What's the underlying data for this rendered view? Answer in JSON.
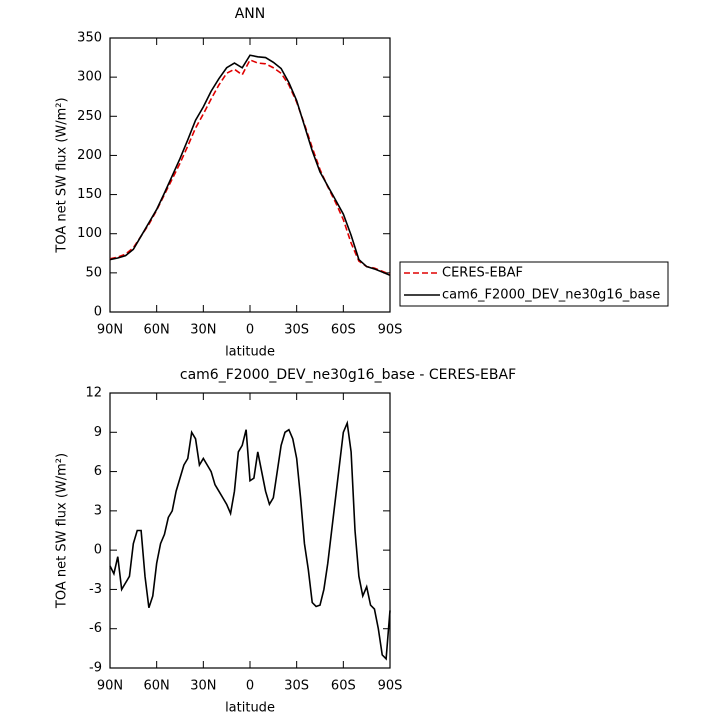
{
  "chart_data": [
    {
      "type": "line",
      "title": "ANN",
      "xlabel": "latitude",
      "ylabel": "TOA net SW flux (W/m²)",
      "x": [
        90,
        85,
        80,
        75,
        70,
        65,
        60,
        55,
        50,
        45,
        40,
        35,
        30,
        25,
        20,
        15,
        10,
        5,
        0,
        -5,
        -10,
        -15,
        -20,
        -25,
        -30,
        -35,
        -40,
        -45,
        -50,
        -55,
        -60,
        -65,
        -70,
        -75,
        -80,
        -85,
        -90
      ],
      "series": [
        {
          "name": "CERES-EBAF",
          "color": "#e00000",
          "line_style": "dashed",
          "values": [
            68,
            70,
            74,
            82,
            97,
            112,
            130,
            150,
            170,
            190,
            212,
            235,
            253,
            272,
            290,
            305,
            310,
            303,
            322,
            318,
            317,
            312,
            305,
            290,
            268,
            240,
            210,
            182,
            160,
            140,
            118,
            88,
            65,
            58,
            56,
            52,
            48
          ]
        },
        {
          "name": "cam6_F2000_DEV_ne30g16_base",
          "color": "#000000",
          "line_style": "solid",
          "values": [
            67,
            69,
            72,
            80,
            97,
            114,
            131,
            152,
            174,
            196,
            220,
            245,
            262,
            282,
            298,
            312,
            318,
            312,
            328,
            326,
            325,
            319,
            311,
            293,
            270,
            238,
            206,
            179,
            161,
            143,
            125,
            98,
            67,
            58,
            55,
            51,
            47
          ]
        }
      ],
      "xlim": [
        90,
        -90
      ],
      "xticks": [
        {
          "value": 90,
          "label": "90N"
        },
        {
          "value": 60,
          "label": "60N"
        },
        {
          "value": 30,
          "label": "30N"
        },
        0,
        {
          "value": -30,
          "label": "30S"
        },
        {
          "value": -60,
          "label": "60S"
        },
        {
          "value": -90,
          "label": "90S"
        }
      ],
      "ylim": [
        0,
        350
      ],
      "yticks": [
        0,
        50,
        100,
        150,
        200,
        250,
        300,
        350
      ],
      "legend": "right"
    },
    {
      "type": "line",
      "title": "cam6_F2000_DEV_ne30g16_base - CERES-EBAF",
      "xlabel": "latitude",
      "ylabel": "TOA net SW flux (W/m²)",
      "x": [
        90,
        87.5,
        85,
        82.5,
        80,
        77.5,
        75,
        72.5,
        70,
        67.5,
        65,
        62.5,
        60,
        57.5,
        55,
        52.5,
        50,
        47.5,
        45,
        42.5,
        40,
        37.5,
        35,
        32.5,
        30,
        27.5,
        25,
        22.5,
        20,
        17.5,
        15,
        12.5,
        10,
        7.5,
        5,
        2.5,
        0,
        -2.5,
        -5,
        -7.5,
        -10,
        -12.5,
        -15,
        -17.5,
        -20,
        -22.5,
        -25,
        -27.5,
        -30,
        -32.5,
        -35,
        -37.5,
        -40,
        -42.5,
        -45,
        -47.5,
        -50,
        -52.5,
        -55,
        -57.5,
        -60,
        -62.5,
        -65,
        -67.5,
        -70,
        -72.5,
        -75,
        -77.5,
        -80,
        -82.5,
        -85,
        -87.5,
        -90
      ],
      "series": [
        {
          "color": "#000000",
          "line_style": "solid",
          "values": [
            -1.2,
            -1.8,
            -0.5,
            -3.0,
            -2.5,
            -2.0,
            0.5,
            1.5,
            1.5,
            -2.0,
            -4.4,
            -3.5,
            -1.0,
            0.5,
            1.2,
            2.5,
            3.0,
            4.5,
            5.5,
            6.5,
            7.0,
            9.0,
            8.5,
            6.5,
            7.0,
            6.5,
            6.0,
            5.0,
            4.5,
            4.0,
            3.5,
            2.8,
            4.5,
            7.5,
            8.0,
            9.2,
            5.3,
            5.5,
            7.5,
            6.0,
            4.5,
            3.5,
            4.0,
            6.0,
            8.0,
            9.0,
            9.2,
            8.5,
            7.0,
            4.0,
            0.5,
            -1.5,
            -4.0,
            -4.3,
            -4.2,
            -3.0,
            -1.0,
            1.5,
            4.0,
            6.5,
            9.0,
            9.7,
            7.5,
            1.5,
            -2.0,
            -3.5,
            -2.8,
            -4.2,
            -4.5,
            -6.0,
            -8.0,
            -8.3,
            -4.6
          ]
        }
      ],
      "xlim": [
        90,
        -90
      ],
      "xticks": [
        {
          "value": 90,
          "label": "90N"
        },
        {
          "value": 60,
          "label": "60N"
        },
        {
          "value": 30,
          "label": "30N"
        },
        0,
        {
          "value": -30,
          "label": "30S"
        },
        {
          "value": -60,
          "label": "60S"
        },
        {
          "value": -90,
          "label": "90S"
        }
      ],
      "ylim": [
        -9,
        12
      ],
      "yticks": [
        -9,
        -6,
        -3,
        0,
        3,
        6,
        9,
        12
      ]
    }
  ]
}
